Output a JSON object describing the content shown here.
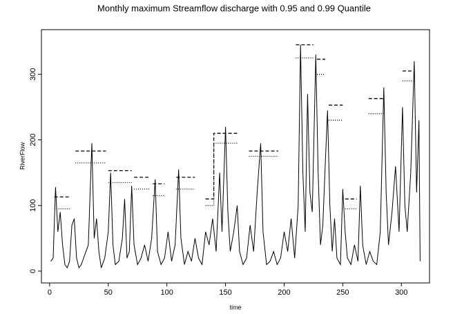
{
  "chart_data": {
    "type": "line",
    "title": "Monthly maximum Streamflow discharge  with 0.95 and 0.99 Quantile",
    "x_label": "time",
    "y_label": "RiverFlow",
    "xlim": [
      -7,
      324
    ],
    "ylim": [
      -18,
      368
    ],
    "xticks": [
      0,
      50,
      100,
      150,
      200,
      250,
      300
    ],
    "yticks": [
      0,
      100,
      200,
      300
    ],
    "series": [
      {
        "color": "#000000",
        "line_style": "solid",
        "x": [
          1,
          3,
          5,
          7,
          9,
          11,
          13,
          15,
          17,
          19,
          21,
          23,
          25,
          27,
          30,
          33,
          36,
          38,
          40,
          42,
          44,
          47,
          50,
          52,
          54,
          56,
          59,
          62,
          64,
          66,
          68,
          70,
          72,
          75,
          78,
          81,
          84,
          87,
          90,
          92,
          95,
          98,
          101,
          104,
          107,
          110,
          112,
          115,
          118,
          121,
          124,
          127,
          130,
          133,
          136,
          139,
          142,
          145,
          147,
          150,
          152,
          154,
          157,
          160,
          162,
          165,
          168,
          171,
          174,
          177,
          180,
          182,
          185,
          188,
          191,
          194,
          197,
          200,
          203,
          206,
          209,
          212,
          214,
          216,
          218,
          220,
          222,
          224,
          227,
          229,
          231,
          233,
          235,
          237,
          239,
          241,
          243,
          245,
          248,
          250,
          252,
          254,
          257,
          260,
          263,
          265,
          267,
          270,
          273,
          276,
          279,
          282,
          285,
          287,
          289,
          292,
          295,
          298,
          301,
          303,
          305,
          308,
          311,
          313,
          315,
          316
        ],
        "values": [
          15,
          20,
          128,
          60,
          90,
          40,
          10,
          5,
          15,
          70,
          80,
          20,
          5,
          10,
          25,
          40,
          195,
          50,
          80,
          30,
          5,
          20,
          60,
          150,
          40,
          10,
          15,
          50,
          110,
          20,
          30,
          130,
          40,
          10,
          20,
          40,
          15,
          50,
          140,
          30,
          10,
          20,
          60,
          15,
          40,
          155,
          50,
          10,
          30,
          15,
          50,
          20,
          10,
          60,
          40,
          80,
          30,
          150,
          60,
          220,
          90,
          30,
          60,
          100,
          30,
          10,
          20,
          70,
          30,
          120,
          195,
          60,
          10,
          15,
          30,
          10,
          20,
          60,
          30,
          80,
          20,
          100,
          345,
          150,
          60,
          270,
          120,
          90,
          330,
          150,
          40,
          70,
          160,
          245,
          100,
          30,
          80,
          20,
          10,
          125,
          60,
          20,
          10,
          40,
          15,
          130,
          40,
          10,
          30,
          15,
          10,
          60,
          280,
          120,
          40,
          90,
          160,
          60,
          250,
          100,
          60,
          150,
          320,
          120,
          230,
          15
        ]
      },
      {
        "color": "#000000",
        "line_style": "dashed",
        "x": [
          4,
          18,
          20,
          22,
          48,
          49,
          50,
          70,
          71,
          72,
          85,
          86,
          88,
          98,
          100,
          108,
          124,
          128,
          133,
          140,
          140,
          160,
          165,
          170,
          195,
          200,
          210,
          225,
          226,
          228,
          235,
          236,
          238,
          250,
          251,
          252,
          262,
          265,
          272,
          285,
          290,
          301,
          310
        ],
        "values": [
          113,
          113,
          null,
          183,
          183,
          null,
          153,
          153,
          null,
          143,
          143,
          null,
          133,
          133,
          null,
          143,
          143,
          null,
          110,
          110,
          210,
          210,
          null,
          183,
          183,
          null,
          345,
          345,
          null,
          323,
          323,
          null,
          253,
          253,
          null,
          110,
          110,
          null,
          263,
          263,
          null,
          305,
          305
        ]
      },
      {
        "color": "#000000",
        "line_style": "dotted",
        "x": [
          4,
          18,
          20,
          22,
          48,
          49,
          50,
          70,
          71,
          72,
          85,
          86,
          88,
          98,
          100,
          108,
          124,
          128,
          133,
          140,
          140,
          160,
          165,
          170,
          195,
          200,
          210,
          225,
          226,
          228,
          235,
          236,
          238,
          250,
          251,
          252,
          262,
          265,
          272,
          285,
          290,
          301,
          310
        ],
        "values": [
          95,
          95,
          null,
          165,
          165,
          null,
          135,
          135,
          null,
          125,
          125,
          null,
          115,
          115,
          null,
          125,
          125,
          null,
          100,
          100,
          195,
          195,
          null,
          175,
          175,
          null,
          325,
          325,
          null,
          300,
          300,
          null,
          230,
          230,
          null,
          95,
          95,
          null,
          240,
          240,
          null,
          290,
          290
        ]
      }
    ]
  }
}
